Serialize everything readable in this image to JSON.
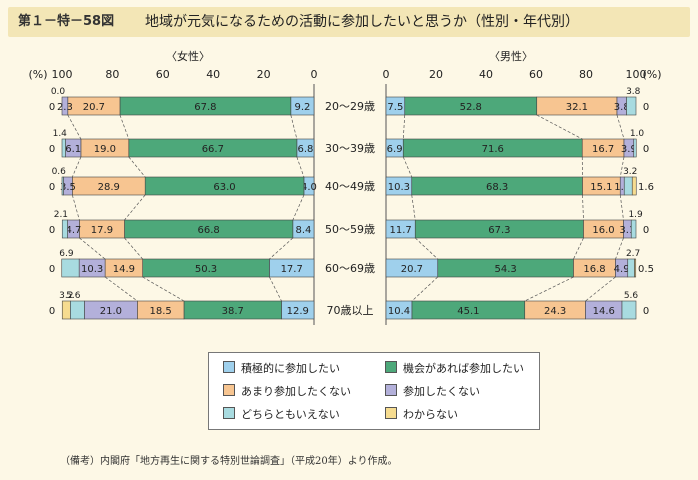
{
  "header": {
    "figure_number": "第１－特－58図",
    "title": "地域が元気になるための活動に参加したいと思うか（性別・年代別）"
  },
  "note": "（備考）内閣府「地方再生に関する特別世論調査」（平成20年）より作成。",
  "colors": {
    "積極的に参加したい": "#9fd0ec",
    "機会があれば参加したい": "#4da87a",
    "あまり参加したくない": "#f7c591",
    "参加したくない": "#b3b0da",
    "どちらともいえない": "#a8dbe0",
    "わからない": "#f6dc90"
  },
  "chart_data": [
    {
      "type": "bar",
      "title": "〈女性〉",
      "unit_label": "(%)",
      "orientation": "horizontal-stacked-reversed",
      "xlim": [
        100,
        0
      ],
      "ticks": [
        "100",
        "80",
        "60",
        "40",
        "20",
        "0"
      ],
      "categories": [
        "20～29歳",
        "30～39歳",
        "40～49歳",
        "50～59歳",
        "60～69歳",
        "70歳以上"
      ],
      "series": [
        {
          "name": "積極的に参加したい",
          "values": [
            9.2,
            6.8,
            4.0,
            8.4,
            17.7,
            12.9
          ]
        },
        {
          "name": "機会があれば参加したい",
          "values": [
            67.8,
            66.7,
            63.0,
            66.8,
            50.3,
            38.7
          ]
        },
        {
          "name": "あまり参加したくない",
          "values": [
            20.7,
            19.0,
            28.9,
            17.9,
            14.9,
            18.5
          ]
        },
        {
          "name": "参加したくない",
          "values": [
            2.3,
            6.1,
            3.5,
            4.7,
            10.3,
            21.0
          ]
        },
        {
          "name": "どちらともいえない",
          "values": [
            0.0,
            1.4,
            0.6,
            2.1,
            6.9,
            5.6
          ]
        },
        {
          "name": "わからない",
          "values": [
            0,
            0,
            0,
            0,
            0,
            3.2
          ]
        }
      ],
      "value_labels": [
        [
          "9.2",
          "67.8",
          "20.7",
          "2.3",
          "0.0",
          "0"
        ],
        [
          "6.8",
          "66.7",
          "19.0",
          "6.1",
          "1.4",
          "0"
        ],
        [
          "4.0",
          "63.0",
          "28.9",
          "3.5",
          "0.6",
          "0"
        ],
        [
          "8.4",
          "66.8",
          "17.9",
          "4.7",
          "2.1",
          "0"
        ],
        [
          "17.7",
          "50.3",
          "14.9",
          "10.3",
          "6.9",
          "0"
        ],
        [
          "12.9",
          "38.7",
          "18.5",
          "21.0",
          "5.6",
          "3.2"
        ]
      ]
    },
    {
      "type": "bar",
      "title": "〈男性〉",
      "unit_label": "(%)",
      "orientation": "horizontal-stacked",
      "xlim": [
        0,
        100
      ],
      "ticks": [
        "0",
        "20",
        "40",
        "60",
        "80",
        "100"
      ],
      "categories": [
        "20～29歳",
        "30～39歳",
        "40～49歳",
        "50～59歳",
        "60～69歳",
        "70歳以上"
      ],
      "series": [
        {
          "name": "積極的に参加したい",
          "values": [
            7.5,
            6.9,
            10.3,
            11.7,
            20.7,
            10.4
          ]
        },
        {
          "name": "機会があれば参加したい",
          "values": [
            52.8,
            71.6,
            68.3,
            67.3,
            54.3,
            45.1
          ]
        },
        {
          "name": "あまり参加したくない",
          "values": [
            32.1,
            16.7,
            15.1,
            16.0,
            16.8,
            24.3
          ]
        },
        {
          "name": "参加したくない",
          "values": [
            3.8,
            3.9,
            1.6,
            3.1,
            4.9,
            14.6
          ]
        },
        {
          "name": "どちらともいえない",
          "values": [
            3.8,
            1.0,
            3.2,
            1.9,
            2.7,
            5.6
          ]
        },
        {
          "name": "わからない",
          "values": [
            0,
            0,
            1.6,
            0,
            0.5,
            0
          ]
        }
      ],
      "value_labels": [
        [
          "7.5",
          "52.8",
          "32.1",
          "3.8",
          "3.8",
          "0"
        ],
        [
          "6.9",
          "71.6",
          "16.7",
          "3.9",
          "1.0",
          "0"
        ],
        [
          "10.3",
          "68.3",
          "15.1",
          "1.6",
          "3.2",
          "1.6"
        ],
        [
          "11.7",
          "67.3",
          "16.0",
          "3.1",
          "1.9",
          "0"
        ],
        [
          "20.7",
          "54.3",
          "16.8",
          "4.9",
          "2.7",
          "0.5"
        ],
        [
          "10.4",
          "45.1",
          "24.3",
          "14.6",
          "5.6",
          "0"
        ]
      ]
    }
  ],
  "legend": [
    "積極的に参加したい",
    "機会があれば参加したい",
    "あまり参加したくない",
    "参加したくない",
    "どちらともいえない",
    "わからない"
  ]
}
